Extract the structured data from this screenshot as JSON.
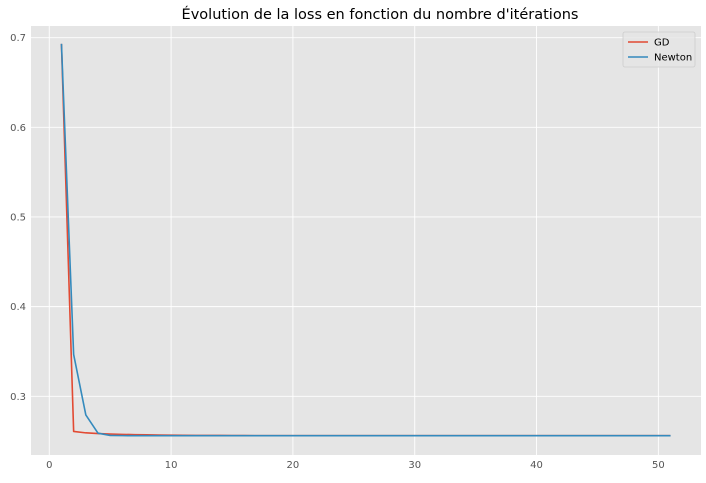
{
  "chart_data": {
    "type": "line",
    "title": "Évolution de la loss en fonction du nombre d'itérations",
    "xlabel": "",
    "ylabel": "",
    "xlim": [
      -1.5,
      53.5
    ],
    "ylim": [
      0.2345,
      0.713
    ],
    "xticks": [
      0,
      10,
      20,
      30,
      40,
      50
    ],
    "yticks": [
      0.3,
      0.4,
      0.5,
      0.6,
      0.7
    ],
    "ytick_labels": [
      "0.3",
      "0.4",
      "0.5",
      "0.6",
      "0.7"
    ],
    "grid": true,
    "legend_position": "top-right",
    "x": [
      1,
      2,
      3,
      4,
      5,
      6,
      7,
      8,
      9,
      10,
      11,
      12,
      13,
      14,
      15,
      16,
      17,
      18,
      19,
      20,
      21,
      22,
      23,
      24,
      25,
      26,
      27,
      28,
      29,
      30,
      31,
      32,
      33,
      34,
      35,
      36,
      37,
      38,
      39,
      40,
      41,
      42,
      43,
      44,
      45,
      46,
      47,
      48,
      49,
      50,
      51
    ],
    "series": [
      {
        "name": "GD",
        "color": "#E24A33",
        "values": [
          0.6931,
          0.2608,
          0.2592,
          0.2584,
          0.2579,
          0.2575,
          0.2572,
          0.257,
          0.2568,
          0.2566,
          0.2565,
          0.2564,
          0.2563,
          0.2563,
          0.2562,
          0.2562,
          0.2561,
          0.2561,
          0.2561,
          0.2561,
          0.256,
          0.256,
          0.256,
          0.256,
          0.256,
          0.256,
          0.256,
          0.256,
          0.256,
          0.256,
          0.256,
          0.256,
          0.256,
          0.256,
          0.256,
          0.256,
          0.256,
          0.256,
          0.256,
          0.256,
          0.256,
          0.256,
          0.256,
          0.256,
          0.256,
          0.256,
          0.256,
          0.256,
          0.256,
          0.256,
          0.256
        ]
      },
      {
        "name": "Newton",
        "color": "#348ABD",
        "values": [
          0.6931,
          0.3467,
          0.2792,
          0.2588,
          0.2563,
          0.2561,
          0.256,
          0.256,
          0.256,
          0.256,
          0.256,
          0.256,
          0.256,
          0.256,
          0.256,
          0.256,
          0.256,
          0.256,
          0.256,
          0.256,
          0.256,
          0.256,
          0.256,
          0.256,
          0.256,
          0.256,
          0.256,
          0.256,
          0.256,
          0.256,
          0.256,
          0.256,
          0.256,
          0.256,
          0.256,
          0.256,
          0.256,
          0.256,
          0.256,
          0.256,
          0.256,
          0.256,
          0.256,
          0.256,
          0.256,
          0.256,
          0.256,
          0.256,
          0.256,
          0.256,
          0.256
        ]
      }
    ]
  },
  "colors": {
    "plot_background": "#E5E5E5",
    "grid": "#FFFFFF",
    "tick_label": "#555555"
  }
}
